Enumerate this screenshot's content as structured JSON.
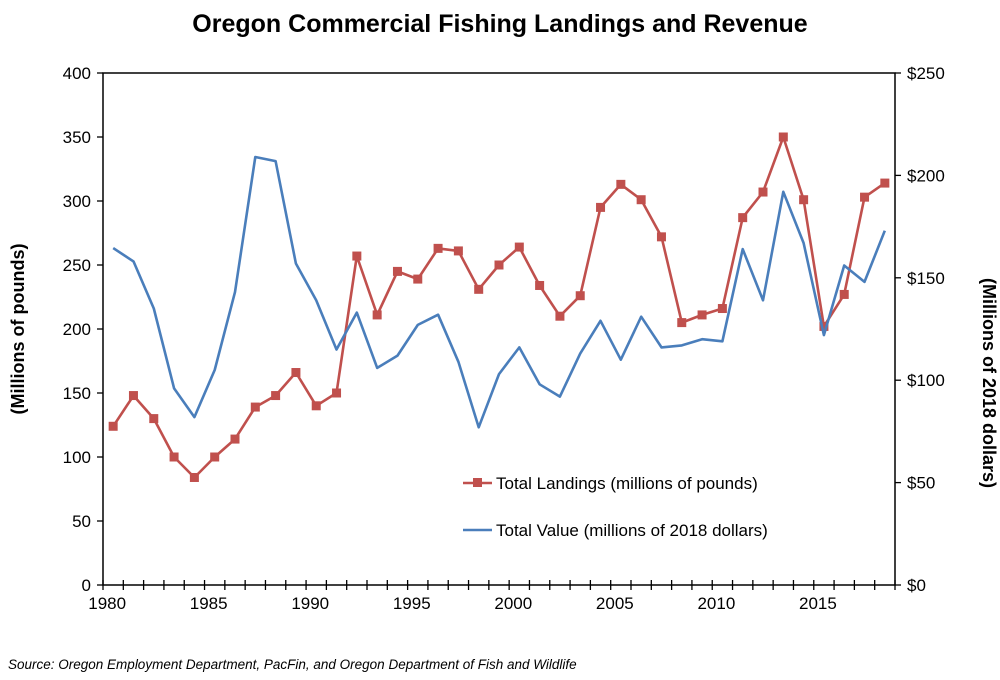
{
  "chart_data": {
    "type": "line",
    "title": "Oregon Commercial Fishing Landings and Revenue",
    "ylabel": "(Millions of pounds)",
    "y2label": "(Millions of 2018 dollars)",
    "ylim": [
      0,
      400
    ],
    "y2lim": [
      0,
      250
    ],
    "yticks": [
      "0",
      "50",
      "100",
      "150",
      "200",
      "250",
      "300",
      "350",
      "400"
    ],
    "y2ticks": [
      "$0",
      "$50",
      "$100",
      "$150",
      "$200",
      "$250"
    ],
    "xticks": [
      "1980",
      "1985",
      "1990",
      "1995",
      "2000",
      "2005",
      "2010",
      "2015"
    ],
    "x": [
      1980,
      1981,
      1982,
      1983,
      1984,
      1985,
      1986,
      1987,
      1988,
      1989,
      1990,
      1991,
      1992,
      1993,
      1994,
      1995,
      1996,
      1997,
      1998,
      1999,
      2000,
      2001,
      2002,
      2003,
      2004,
      2005,
      2006,
      2007,
      2008,
      2009,
      2010,
      2011,
      2012,
      2013,
      2014,
      2015,
      2016,
      2017,
      2018
    ],
    "series": [
      {
        "name": "Total Landings (millions of pounds)",
        "axis": "left",
        "color": "#c0504d",
        "marker": "square",
        "values": [
          124,
          148,
          130,
          100,
          84,
          100,
          114,
          139,
          148,
          166,
          140,
          150,
          257,
          211,
          245,
          239,
          263,
          261,
          231,
          250,
          264,
          234,
          210,
          226,
          295,
          313,
          301,
          272,
          205,
          211,
          216,
          287,
          307,
          350,
          301,
          202,
          227,
          303,
          314
        ]
      },
      {
        "name": "Total Value (millions of 2018 dollars)",
        "axis": "right",
        "color": "#4a7ebb",
        "marker": "none",
        "values": [
          164.5,
          158,
          135,
          96,
          82,
          105,
          143,
          209,
          207,
          157,
          139,
          115,
          133,
          106,
          112,
          127,
          132,
          109,
          77,
          103,
          116,
          98,
          92,
          113,
          129,
          110,
          131,
          116,
          117,
          120,
          119,
          164,
          139,
          192,
          167,
          122,
          156,
          148,
          173
        ]
      }
    ],
    "legend_position": "bottom-center-inside",
    "grid": false,
    "source": "Source: Oregon Employment Department, PacFin, and Oregon Department of Fish and Wildlife"
  }
}
